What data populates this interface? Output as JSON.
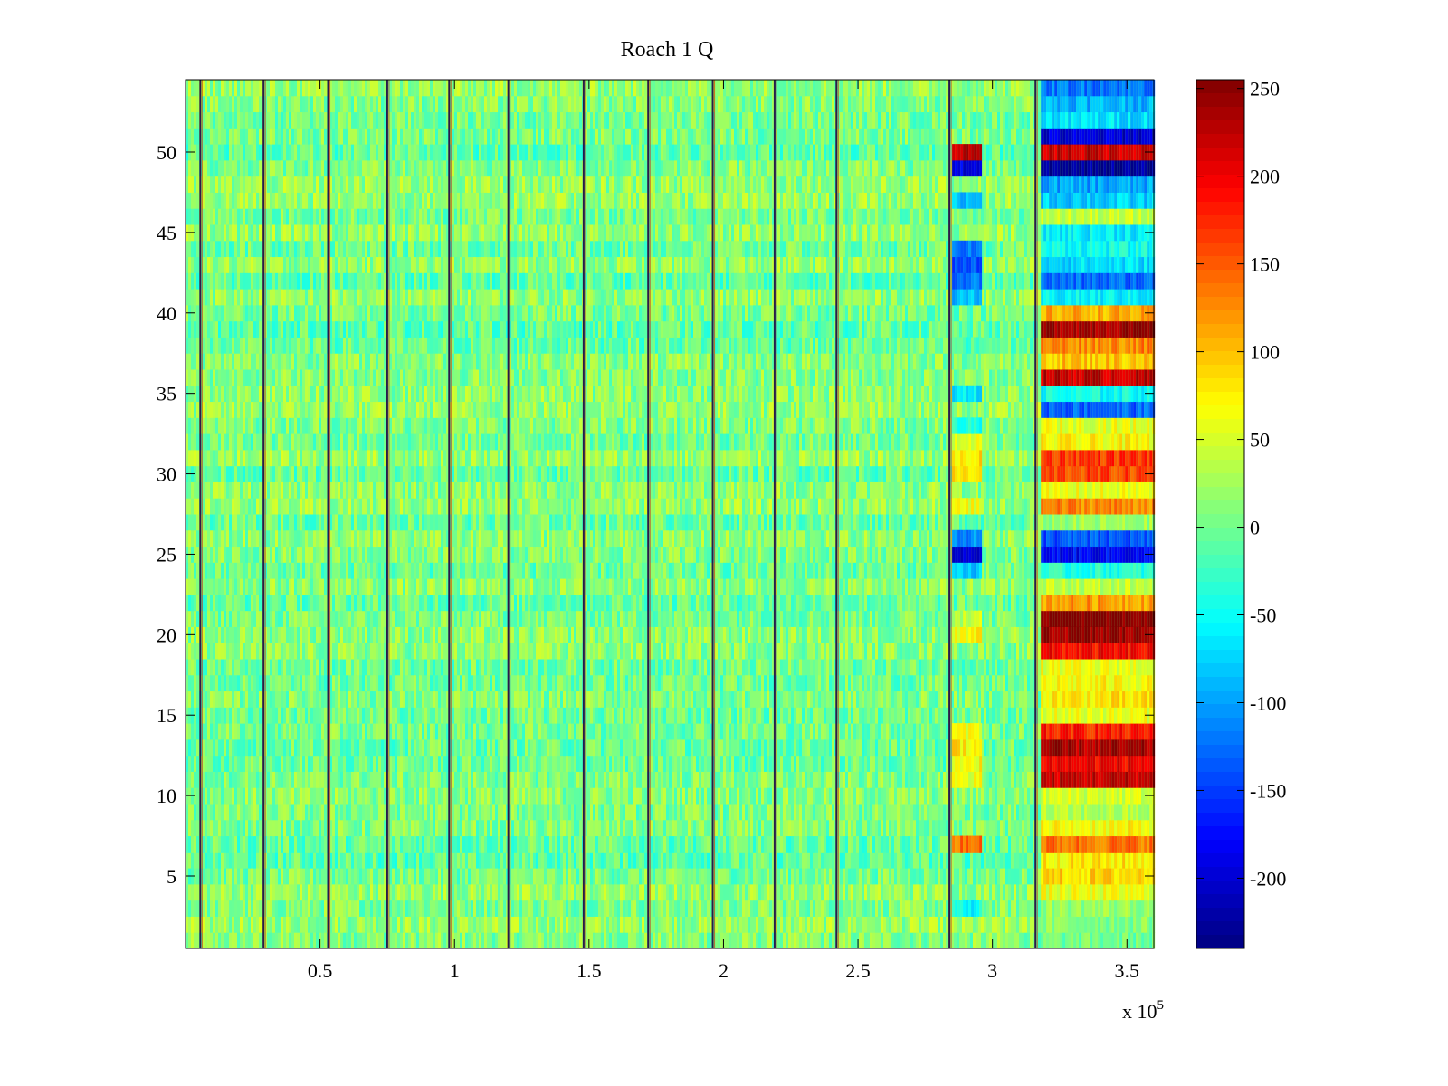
{
  "chart_data": {
    "type": "heatmap",
    "title": "Roach 1 Q",
    "xlabel": "",
    "ylabel": "",
    "x_multiplier_label": "x 10",
    "x_multiplier_exponent": "5",
    "xlim": [
      0,
      3.6
    ],
    "ylim": [
      0.5,
      54.5
    ],
    "xticks": [
      0.5,
      1,
      1.5,
      2,
      2.5,
      3,
      3.5
    ],
    "xtick_labels": [
      "0.5",
      "1",
      "1.5",
      "2",
      "2.5",
      "3",
      "3.5"
    ],
    "yticks": [
      5,
      10,
      15,
      20,
      25,
      30,
      35,
      40,
      45,
      50
    ],
    "ytick_labels": [
      "5",
      "10",
      "15",
      "20",
      "25",
      "30",
      "35",
      "40",
      "45",
      "50"
    ],
    "n_rows": 54,
    "colormap": "jet",
    "clim": [
      -240,
      255
    ],
    "colorbar": {
      "ticks": [
        250,
        200,
        150,
        100,
        50,
        0,
        -50,
        -100,
        -150,
        -200
      ],
      "tick_labels": [
        "250",
        "200",
        "150",
        "100",
        "50",
        "0",
        "-50",
        "-100",
        "-150",
        "-200"
      ]
    },
    "background_level": 5,
    "boundary_lines_x": [
      0.055,
      0.29,
      0.53,
      0.75,
      0.98,
      1.2,
      1.48,
      1.72,
      1.96,
      2.19,
      2.42,
      2.84,
      3.16
    ],
    "mid_block": {
      "x_range": [
        2.85,
        2.96
      ],
      "row_values": {
        "50": 220,
        "49": -190,
        "47": -80,
        "44": -120,
        "43": -140,
        "42": -120,
        "41": -90,
        "38": -20,
        "35": -60,
        "33": -40,
        "32": 60,
        "31": 80,
        "30": 90,
        "28": 60,
        "26": -110,
        "25": -190,
        "24": -80,
        "21": 40,
        "20": 70,
        "14": 60,
        "13": 80,
        "12": 70,
        "11": 60,
        "7": 140,
        "3": -50
      }
    },
    "right_block": {
      "x_range": [
        3.18,
        3.6
      ],
      "row_values": {
        "54": -120,
        "53": -90,
        "52": -70,
        "51": -200,
        "50": 220,
        "49": -230,
        "48": -100,
        "47": -80,
        "46": 40,
        "45": -60,
        "44": -50,
        "43": -70,
        "42": -130,
        "41": -60,
        "40": 110,
        "39": 240,
        "38": 130,
        "37": 100,
        "36": 220,
        "35": -50,
        "34": -130,
        "33": 60,
        "32": 70,
        "31": 170,
        "30": 160,
        "29": 60,
        "28": 130,
        "27": 20,
        "26": -140,
        "25": -180,
        "24": -40,
        "23": 40,
        "22": 120,
        "21": 260,
        "20": 240,
        "19": 190,
        "18": 60,
        "17": 70,
        "16": 80,
        "15": 60,
        "14": 180,
        "13": 230,
        "12": 200,
        "11": 220,
        "10": 50,
        "9": 30,
        "8": 70,
        "7": 140,
        "6": 80,
        "5": 90,
        "4": 60,
        "3": 20,
        "2": 10,
        "1": 0
      }
    }
  }
}
